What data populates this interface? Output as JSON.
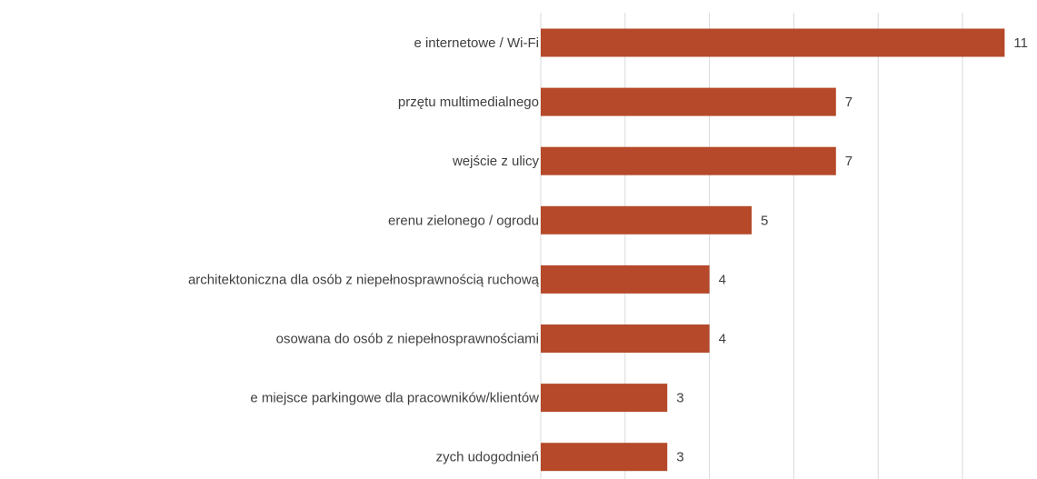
{
  "chart_data": {
    "type": "bar",
    "orientation": "horizontal",
    "categories": [
      "e internetowe / Wi-Fi",
      "przętu multimedialnego",
      "wejście z ulicy",
      "erenu zielonego / ogrodu",
      "architektoniczna dla osób z niepełnosprawnością ruchową",
      "osowana do osób z niepełnosprawnościami",
      "e miejsce parkingowe dla pracowników/klientów",
      "zych udogodnień"
    ],
    "values": [
      11,
      7,
      7,
      5,
      4,
      4,
      3,
      3
    ],
    "bar_color": "#b5492a",
    "xlim": [
      0,
      12
    ],
    "x_gridline_step": 2,
    "grid": true,
    "data_labels": true,
    "title": "",
    "xlabel": "",
    "ylabel": ""
  }
}
